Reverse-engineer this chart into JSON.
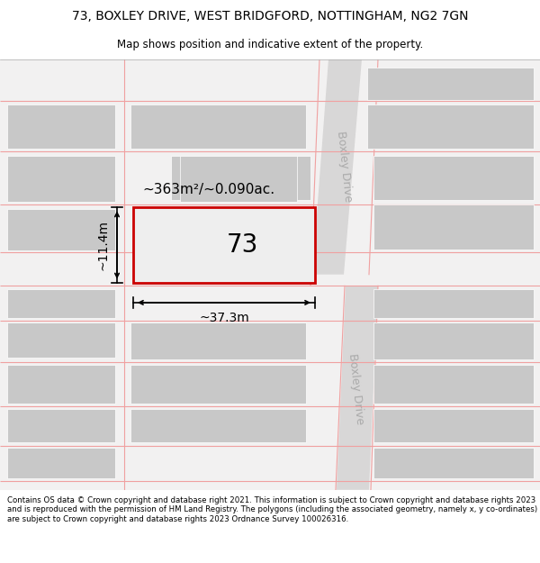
{
  "title_line1": "73, BOXLEY DRIVE, WEST BRIDGFORD, NOTTINGHAM, NG2 7GN",
  "title_line2": "Map shows position and indicative extent of the property.",
  "footer_text": "Contains OS data © Crown copyright and database right 2021. This information is subject to Crown copyright and database rights 2023 and is reproduced with the permission of HM Land Registry. The polygons (including the associated geometry, namely x, y co-ordinates) are subject to Crown copyright and database rights 2023 Ordnance Survey 100026316.",
  "map_bg": "#f2f1f1",
  "road_color": "#d8d7d7",
  "block_color": "#c8c8c8",
  "highlight_fill": "#eeeeee",
  "highlight_border": "#cc0000",
  "road_line_color": "#f0a0a0",
  "label_73": "73",
  "area_label": "~363m²/~0.090ac.",
  "width_label": "~37.3m",
  "height_label": "~11.4m",
  "road_label": "Boxley Drive",
  "title_fontsize": 10,
  "subtitle_fontsize": 8.5,
  "footer_fontsize": 6.2
}
